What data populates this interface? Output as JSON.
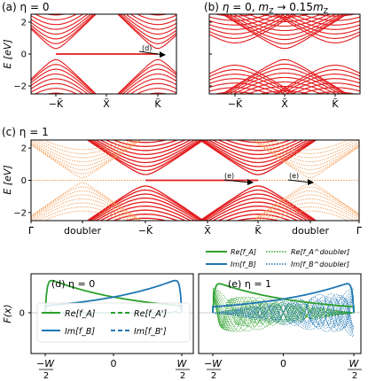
{
  "panels": {
    "a": {
      "title": "(a) η = 0",
      "arrow_label": "(d)"
    },
    "b": {
      "title": "(b) η = 0, m_Z → 0.15m_Z",
      "t1": "(b) ",
      "t2": "η",
      "t3": " = 0, ",
      "t4": "m",
      "t5": "Z",
      "t6": " → 0.15",
      "t7": "m",
      "t8": "Z"
    },
    "c": {
      "title": "(c) η = 1",
      "arrow1": "(e)",
      "arrow2": "(e)"
    },
    "d": {
      "title": "(d) η = 0"
    },
    "e": {
      "title": "(e) η = 1"
    }
  },
  "axes": {
    "energy_label": "E [eV]",
    "energy_ticks": [
      "2",
      "0",
      "−2"
    ],
    "k_ticks_ab": [
      "−K̃",
      "X̃",
      "K̃"
    ],
    "k_ticks_c": [
      "Γ̃",
      "doubler",
      "−K̃",
      "X̃",
      "K̃",
      "doubler",
      "Γ̃"
    ],
    "fx_label": "F(x)",
    "fx_zero": "0",
    "w_ticks": {
      "left": "−W/2",
      "mid": "0",
      "right": "W/2"
    }
  },
  "legends": {
    "d": [
      "Re[f_A]",
      "Im[f_B]",
      "Re[f_A']",
      "Im[f_B']"
    ],
    "e": [
      "Re[f_A]",
      "Im[f_B]",
      "Re[f_A^doubler]",
      "Im[f_B^doubler]"
    ]
  },
  "colors": {
    "band": "#e41a1c",
    "doubler": "#f5a05a",
    "green": "#2ca02c",
    "blue": "#1f77b4"
  },
  "chart_data": [
    {
      "type": "line",
      "panel": "a",
      "ylabel": "E [eV]",
      "ylim": [
        -2.5,
        2.5
      ],
      "x_ticks": [
        "−K̃",
        "X̃",
        "K̃"
      ],
      "edge_state_energy": 0,
      "gap": [
        -0.35,
        0.35
      ]
    },
    {
      "type": "line",
      "panel": "b",
      "ylim": [
        -2.5,
        2.5
      ],
      "x_ticks": [
        "−K̃",
        "X̃",
        "K̃"
      ]
    },
    {
      "type": "line",
      "panel": "c",
      "ylabel": "E [eV]",
      "ylim": [
        -2.5,
        2.5
      ],
      "x_ticks": [
        "Γ̃",
        "doubler",
        "−K̃",
        "X̃",
        "K̃",
        "doubler",
        "Γ̃"
      ],
      "edge_state_energy": 0
    },
    {
      "type": "line",
      "panel": "d",
      "ylabel": "F(x)",
      "x_ticks": [
        "−W/2",
        "0",
        "W/2"
      ],
      "series": [
        {
          "name": "Re[f_A]"
        },
        {
          "name": "Im[f_B]"
        },
        {
          "name": "Re[f_A']"
        },
        {
          "name": "Im[f_B']"
        }
      ]
    },
    {
      "type": "line",
      "panel": "e",
      "x_ticks": [
        "−W/2",
        "0",
        "W/2"
      ],
      "series": [
        {
          "name": "Re[f_A]"
        },
        {
          "name": "Im[f_B]"
        },
        {
          "name": "Re[f_A^doubler]"
        },
        {
          "name": "Im[f_B^doubler]"
        }
      ]
    }
  ]
}
